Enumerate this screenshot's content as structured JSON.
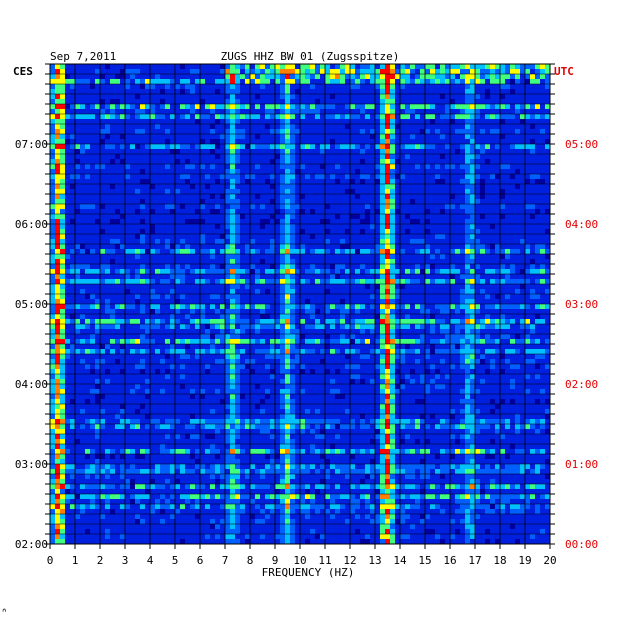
{
  "chart_data": {
    "type": "heatmap",
    "date": "Sep 7,2011",
    "station": "ZUGS HHZ BW 01 (Zugsspitze)",
    "xlabel": "FREQUENCY (HZ)",
    "xlim": [
      0,
      20
    ],
    "x_ticks": [
      "0",
      "1",
      "2",
      "3",
      "4",
      "5",
      "6",
      "7",
      "8",
      "9",
      "10",
      "11",
      "12",
      "13",
      "14",
      "15",
      "16",
      "17",
      "18",
      "19",
      "20"
    ],
    "left_axis": {
      "label": "CES",
      "ticks": [
        "07:00",
        "06:00",
        "05:00",
        "04:00",
        "03:00",
        "02:00"
      ],
      "tick_hours": [
        7,
        6,
        5,
        4,
        3,
        2
      ]
    },
    "right_axis": {
      "label": "UTC",
      "ticks": [
        "05:00",
        "04:00",
        "03:00",
        "02:00",
        "01:00",
        "00:00"
      ],
      "tick_hours": [
        5,
        4,
        3,
        2,
        1,
        0
      ]
    },
    "ylim_ces_hours": [
      2,
      8
    ],
    "colorscale": [
      "#0000a0",
      "#0020e0",
      "#0060ff",
      "#00c0ff",
      "#40ff80",
      "#ffff00",
      "#ff8000",
      "#ff0000"
    ],
    "grid": true,
    "dominant_bands_hz": [
      {
        "freq": 0.35,
        "level": 0.85
      },
      {
        "freq": 13.5,
        "level": 0.8
      },
      {
        "freq": 9.5,
        "level": 0.35
      },
      {
        "freq": 7.3,
        "level": 0.3
      },
      {
        "freq": 16.8,
        "level": 0.3
      }
    ],
    "corner_mark": "ᐢ"
  }
}
